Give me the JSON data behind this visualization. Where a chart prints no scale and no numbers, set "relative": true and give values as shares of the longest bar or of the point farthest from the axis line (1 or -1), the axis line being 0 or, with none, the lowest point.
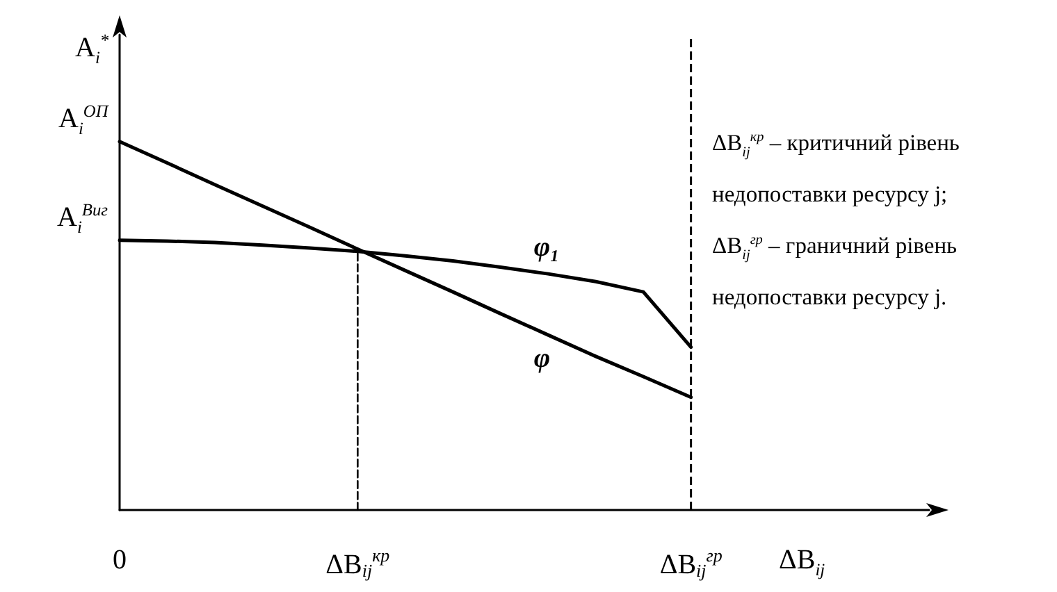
{
  "chart_data": {
    "type": "line",
    "relative": true,
    "ylabel": "A$_{i}$$^{*}$",
    "xlabel": "ΔB$_{ij}$",
    "categories": [
      "0",
      null,
      null,
      null,
      null,
      "ΔB$_{ij}$$^{кр}$",
      null,
      null,
      null,
      null,
      null,
      null,
      "ΔB$_{ij}$$^{гр}$",
      null,
      null,
      null,
      null,
      null
    ],
    "marker": "none",
    "line_style": "solid",
    "series": [
      {
        "name": "φ",
        "color": "#000000",
        "values": [
          1,
          0.942,
          0.883,
          0.825,
          0.767,
          0.708,
          0.65,
          0.592,
          0.533,
          0.475,
          0.417,
          0.362,
          0.306,
          null,
          null,
          null,
          null,
          null
        ]
      },
      {
        "name": "φ₁",
        "color": "#000000",
        "values": [
          0.732,
          0.73,
          0.726,
          0.719,
          0.711,
          0.702,
          0.69,
          0.676,
          0.659,
          0.641,
          0.62,
          0.592,
          0.442,
          null,
          null,
          null,
          null,
          null
        ]
      },
      {
        "color": "#000000",
        "line_style": "dashed",
        "x": [
          "ΔB$_{ij}$$^{кр}$",
          "ΔB$_{ij}$$^{кр}$"
        ],
        "values": [
          0,
          0.702
        ]
      }
    ],
    "ref_lines": [
      {
        "axis": "x",
        "value": "ΔB$_{ij}$$^{гр}$",
        "color": "#000000",
        "line_style": "dashed"
      }
    ],
    "annotations": [
      {
        "text": "A$_{i}$$^{ОП}$",
        "x": "0",
        "y": 1
      },
      {
        "text": "A$_{i}$$^{Виг}$",
        "x": "0",
        "y": 0.732
      },
      "ΔB$_{ij}$$^{кр}$ – критичний рівень недопоставки ресурсу j;",
      "ΔB$_{ij}$$^{гр}$ – граничний рівень недопоставки ресурсу j."
    ]
  }
}
